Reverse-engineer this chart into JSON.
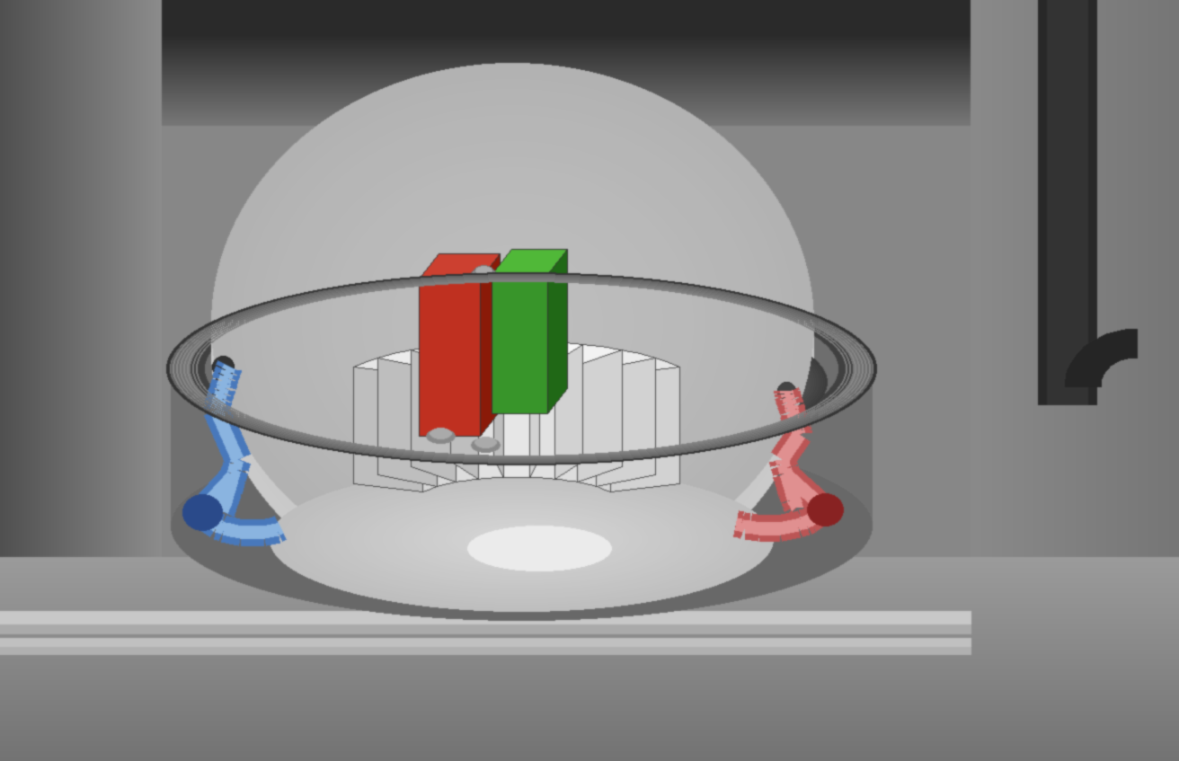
{
  "fig_width": 13.12,
  "fig_height": 8.47,
  "bg_color": "#878787",
  "wall_top_color": "#4a4a4a",
  "wall_side_color": "#7a7a7a",
  "floor_color": "#8e8e8e",
  "housing_outer_color": "#656565",
  "housing_mid_color": "#7e7e7e",
  "housing_inner_color": "#aaaaaa",
  "chamber_wall_color": "#c0c0c0",
  "chamber_floor_color": "#d8d8d8",
  "chamber_bright_color": "#e8e8e8",
  "seg_top_color": "#f0f0f0",
  "seg_face_color": "#e0e0e0",
  "seg_side_color": "#c8c8c8",
  "seg_edge_color": "#444444",
  "magnet_red": "#c03020",
  "magnet_red_top": "#d04030",
  "magnet_red_side": "#902010",
  "magnet_green": "#3a9a28",
  "magnet_green_top": "#55bb3a",
  "magnet_green_side": "#287018",
  "blue_color": "#6090cc",
  "blue_highlight": "#90b8e8",
  "pink_color": "#cc7070",
  "pink_highlight": "#e8a8a8",
  "pipe_color": "#222222",
  "pipe_mid": "#333333",
  "bolt_color": "#888888",
  "dark_ring_color": "#2a2a2a",
  "ledge_color": "#b8b8b8"
}
